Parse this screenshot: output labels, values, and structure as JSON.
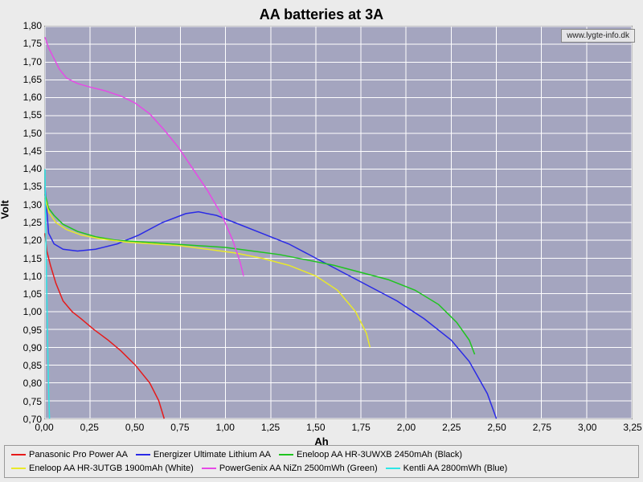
{
  "chart": {
    "type": "line",
    "title": "AA batteries at 3A",
    "xlabel": "Ah",
    "ylabel": "Volt",
    "watermark": "www.lygte-info.dk",
    "background_color": "#ebebeb",
    "plot_background_color": "#a4a5bf",
    "grid_color": "#ffffff",
    "title_fontsize": 18,
    "label_fontsize": 13,
    "tick_fontsize": 12,
    "xlim": [
      0,
      3.25
    ],
    "ylim": [
      0.7,
      1.8
    ],
    "xtick_step": 0.25,
    "ytick_step": 0.05,
    "decimal_separator": ",",
    "line_width": 1.5,
    "series": [
      {
        "name": "Panasonic Pro Power AA",
        "color": "#e61a1a",
        "data": [
          [
            0.0,
            1.22
          ],
          [
            0.01,
            1.17
          ],
          [
            0.03,
            1.13
          ],
          [
            0.06,
            1.08
          ],
          [
            0.1,
            1.03
          ],
          [
            0.15,
            1.0
          ],
          [
            0.2,
            0.98
          ],
          [
            0.27,
            0.95
          ],
          [
            0.35,
            0.92
          ],
          [
            0.42,
            0.89
          ],
          [
            0.5,
            0.85
          ],
          [
            0.58,
            0.8
          ],
          [
            0.63,
            0.75
          ],
          [
            0.66,
            0.7
          ]
        ]
      },
      {
        "name": "Energizer Ultimate Lithium AA",
        "color": "#2a2ae6",
        "data": [
          [
            0.0,
            1.35
          ],
          [
            0.02,
            1.22
          ],
          [
            0.05,
            1.19
          ],
          [
            0.1,
            1.175
          ],
          [
            0.18,
            1.17
          ],
          [
            0.28,
            1.175
          ],
          [
            0.4,
            1.19
          ],
          [
            0.52,
            1.215
          ],
          [
            0.65,
            1.25
          ],
          [
            0.78,
            1.275
          ],
          [
            0.85,
            1.28
          ],
          [
            0.95,
            1.27
          ],
          [
            1.05,
            1.25
          ],
          [
            1.2,
            1.22
          ],
          [
            1.35,
            1.19
          ],
          [
            1.5,
            1.15
          ],
          [
            1.65,
            1.11
          ],
          [
            1.8,
            1.07
          ],
          [
            1.95,
            1.03
          ],
          [
            2.1,
            0.98
          ],
          [
            2.25,
            0.92
          ],
          [
            2.35,
            0.86
          ],
          [
            2.45,
            0.77
          ],
          [
            2.5,
            0.7
          ]
        ]
      },
      {
        "name": "Eneloop AA HR-3UWXB 2450mAh (Black)",
        "color": "#1fc41f",
        "data": [
          [
            0.0,
            1.33
          ],
          [
            0.02,
            1.29
          ],
          [
            0.05,
            1.27
          ],
          [
            0.1,
            1.245
          ],
          [
            0.18,
            1.225
          ],
          [
            0.28,
            1.21
          ],
          [
            0.4,
            1.2
          ],
          [
            0.55,
            1.195
          ],
          [
            0.7,
            1.19
          ],
          [
            0.85,
            1.185
          ],
          [
            1.0,
            1.18
          ],
          [
            1.15,
            1.17
          ],
          [
            1.3,
            1.16
          ],
          [
            1.45,
            1.145
          ],
          [
            1.6,
            1.13
          ],
          [
            1.75,
            1.11
          ],
          [
            1.9,
            1.09
          ],
          [
            2.05,
            1.06
          ],
          [
            2.18,
            1.02
          ],
          [
            2.28,
            0.97
          ],
          [
            2.35,
            0.92
          ],
          [
            2.38,
            0.88
          ]
        ]
      },
      {
        "name": "Eneloop AA HR-3UTGB 1900mAh (White)",
        "color": "#e9e92a",
        "data": [
          [
            0.0,
            1.32
          ],
          [
            0.02,
            1.28
          ],
          [
            0.06,
            1.25
          ],
          [
            0.12,
            1.23
          ],
          [
            0.2,
            1.215
          ],
          [
            0.3,
            1.205
          ],
          [
            0.45,
            1.195
          ],
          [
            0.6,
            1.19
          ],
          [
            0.75,
            1.185
          ],
          [
            0.9,
            1.175
          ],
          [
            1.05,
            1.165
          ],
          [
            1.2,
            1.15
          ],
          [
            1.35,
            1.13
          ],
          [
            1.5,
            1.1
          ],
          [
            1.62,
            1.06
          ],
          [
            1.72,
            1.0
          ],
          [
            1.78,
            0.94
          ],
          [
            1.8,
            0.9
          ]
        ]
      },
      {
        "name": "PowerGenix AA NiZn 2500mWh (Green)",
        "color": "#e64ae6",
        "data": [
          [
            0.0,
            1.77
          ],
          [
            0.02,
            1.74
          ],
          [
            0.05,
            1.71
          ],
          [
            0.08,
            1.68
          ],
          [
            0.12,
            1.655
          ],
          [
            0.18,
            1.64
          ],
          [
            0.25,
            1.63
          ],
          [
            0.33,
            1.62
          ],
          [
            0.42,
            1.605
          ],
          [
            0.5,
            1.585
          ],
          [
            0.58,
            1.555
          ],
          [
            0.66,
            1.51
          ],
          [
            0.74,
            1.46
          ],
          [
            0.82,
            1.4
          ],
          [
            0.9,
            1.34
          ],
          [
            0.98,
            1.27
          ],
          [
            1.04,
            1.2
          ],
          [
            1.08,
            1.14
          ],
          [
            1.1,
            1.1
          ]
        ]
      },
      {
        "name": "Kentli AA 2800mWh (Blue)",
        "color": "#2ee6e6",
        "data": [
          [
            0.0,
            1.4
          ],
          [
            0.005,
            1.2
          ],
          [
            0.01,
            1.05
          ],
          [
            0.015,
            0.9
          ],
          [
            0.02,
            0.78
          ],
          [
            0.025,
            0.7
          ]
        ]
      }
    ]
  }
}
